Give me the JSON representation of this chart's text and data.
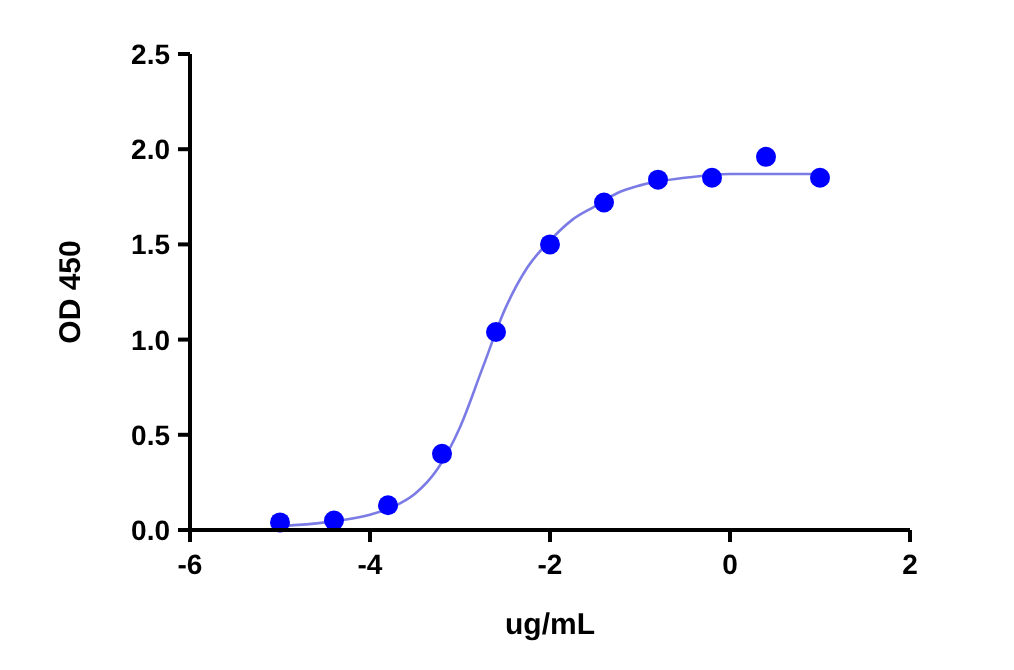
{
  "chart_data": {
    "type": "scatter",
    "xlabel": "ug/mL",
    "ylabel": "OD 450",
    "xlim": [
      -6,
      2
    ],
    "xticks": [
      -6,
      -4,
      -2,
      0,
      2
    ],
    "ylim": [
      0,
      2.5
    ],
    "yticks": [
      {
        "value": 0,
        "label": "0.0"
      },
      {
        "value": 0.5,
        "label": "0.5"
      },
      {
        "value": 1,
        "label": "1.0"
      },
      {
        "value": 1.5,
        "label": "1.5"
      },
      {
        "value": 2,
        "label": "2.0"
      },
      {
        "value": 2.5,
        "label": "2.5"
      }
    ],
    "grid": false,
    "series": [
      {
        "marker": "circle",
        "color": "#0000ff",
        "x": [
          -5,
          -4.4,
          -3.8,
          -3.2,
          -2.6,
          -2,
          -1.4,
          -0.8,
          -0.2,
          0.4,
          1
        ],
        "values": [
          0.04,
          0.05,
          0.13,
          0.4,
          1.04,
          1.5,
          1.72,
          1.84,
          1.85,
          1.96,
          1.85
        ]
      },
      {
        "type": "line",
        "color": "#7b7be6",
        "line_style": "solid",
        "x": [
          -5,
          -4.5,
          -4,
          -3.75,
          -3.5,
          -3.25,
          -3,
          -2.75,
          -2.5,
          -2.25,
          -2,
          -1.75,
          -1.5,
          -1.25,
          -1,
          -0.5,
          0,
          0.5,
          1
        ],
        "values": [
          0.02,
          0.04,
          0.08,
          0.12,
          0.19,
          0.32,
          0.54,
          0.85,
          1.16,
          1.38,
          1.52,
          1.63,
          1.7,
          1.77,
          1.81,
          1.85,
          1.87,
          1.87,
          1.87
        ]
      }
    ]
  }
}
